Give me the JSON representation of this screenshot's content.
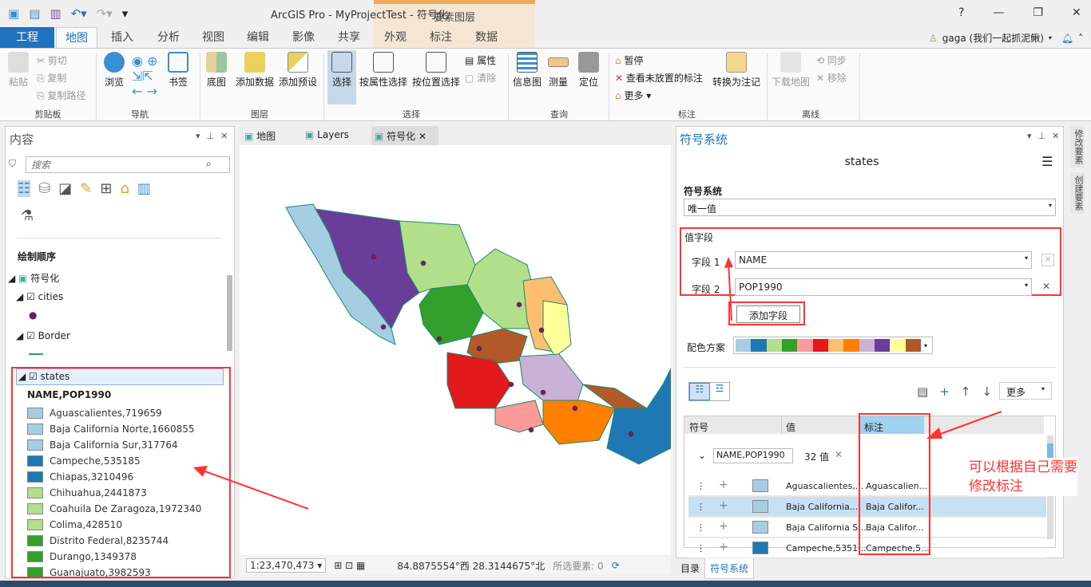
{
  "window": {
    "title": "ArcGIS Pro - MyProjectTest - 符号化",
    "context_tab_group": "要素图层",
    "help": "?",
    "minimize": "—",
    "restore": "❐",
    "close": "✕"
  },
  "user": {
    "name": "gaga (我们一起抓泥鳅)"
  },
  "tabs": [
    "工程",
    "地图",
    "插入",
    "分析",
    "视图",
    "编辑",
    "影像",
    "共享",
    "外观",
    "标注",
    "数据"
  ],
  "ribbon": {
    "clipboard": {
      "paste": "粘贴",
      "cut": "剪切",
      "copy": "复制",
      "copy_path": "复制路径",
      "group": "剪贴板"
    },
    "navigate": {
      "explore": "浏览",
      "bookmarks": "书签",
      "group": "导航"
    },
    "layer": {
      "basemap": "底图",
      "add_data": "添加数据",
      "add_preset": "添加预设",
      "group": "图层"
    },
    "selection": {
      "select": "选择",
      "by_attr": "按属性选择",
      "by_loc": "按位置选择",
      "attributes": "属性",
      "clear": "清除",
      "group": "选择"
    },
    "inquiry": {
      "infographics": "信息图",
      "measure": "测量",
      "locate": "定位",
      "group": "查询"
    },
    "labeling": {
      "pause": "暂停",
      "view_unplaced": "查看未放置的标注",
      "more": "更多",
      "convert": "转换为注记",
      "group": "标注"
    },
    "offline": {
      "download": "下载地图",
      "sync": "同步",
      "remove": "移除",
      "group": "离线"
    }
  },
  "contents": {
    "title": "内容",
    "search_placeholder": "搜索",
    "drawing_order": "绘制顺序",
    "layers": {
      "map": "符号化",
      "cities": "cities",
      "border": "Border",
      "states": "states"
    },
    "legend_header": "NAME,POP1990",
    "legend": [
      {
        "label": "Aguascalientes,719659",
        "color": "#a6cee3"
      },
      {
        "label": "Baja California Norte,1660855",
        "color": "#a6cee3"
      },
      {
        "label": "Baja California Sur,317764",
        "color": "#a6cee3"
      },
      {
        "label": "Campeche,535185",
        "color": "#1f78b4"
      },
      {
        "label": "Chiapas,3210496",
        "color": "#1f78b4"
      },
      {
        "label": "Chihuahua,2441873",
        "color": "#b2df8a"
      },
      {
        "label": "Coahuila De Zaragoza,1972340",
        "color": "#b2df8a"
      },
      {
        "label": "Colima,428510",
        "color": "#b2df8a"
      },
      {
        "label": "Distrito Federal,8235744",
        "color": "#33a02c"
      },
      {
        "label": "Durango,1349378",
        "color": "#33a02c"
      },
      {
        "label": "Guanajuato,3982593",
        "color": "#33a02c"
      }
    ]
  },
  "map_tabs": [
    "地图",
    "Layers",
    "符号化"
  ],
  "map_status": {
    "scale": "1:23,470,473",
    "coords": "84.8875554°西 28.3144675°北",
    "selected": "所选要素: 0"
  },
  "symbology": {
    "pane_title": "符号系统",
    "layer": "states",
    "section": "符号系统",
    "method": "唯一值",
    "value_fields": "值字段",
    "field1_label": "字段 1",
    "field1": "NAME",
    "field2_label": "字段 2",
    "field2": "POP1990",
    "add_field": "添加字段",
    "color_scheme_label": "配色方案",
    "color_scheme": [
      "#a6cee3",
      "#1f78b4",
      "#b2df8a",
      "#33a02c",
      "#fb9a99",
      "#e31a1c",
      "#fdbf6f",
      "#ff7f00",
      "#cab2d6",
      "#6a3d9a",
      "#ffff99",
      "#b15928"
    ],
    "more": "更多",
    "columns": [
      "符号",
      "值",
      "标注"
    ],
    "group_field": "NAME,POP1990",
    "group_count": "32 值",
    "rows": [
      {
        "value": "Aguascalientes,...",
        "label": "Aguascalien...",
        "color": "#a6cee3"
      },
      {
        "value": "Baja California...",
        "label": "Baja Califor...",
        "color": "#a6cee3"
      },
      {
        "value": "Baja California S...",
        "label": "Baja Califor...",
        "color": "#a6cee3"
      },
      {
        "value": "Campeche,5351...",
        "label": "Campeche,5...",
        "color": "#1f78b4"
      }
    ]
  },
  "bottom_tabs": [
    "目录",
    "符号系统"
  ],
  "side_tabs": [
    "修改要素",
    "创建要素"
  ],
  "annotation": {
    "line1": "可以根据自己需要",
    "line2": "修改标注"
  }
}
